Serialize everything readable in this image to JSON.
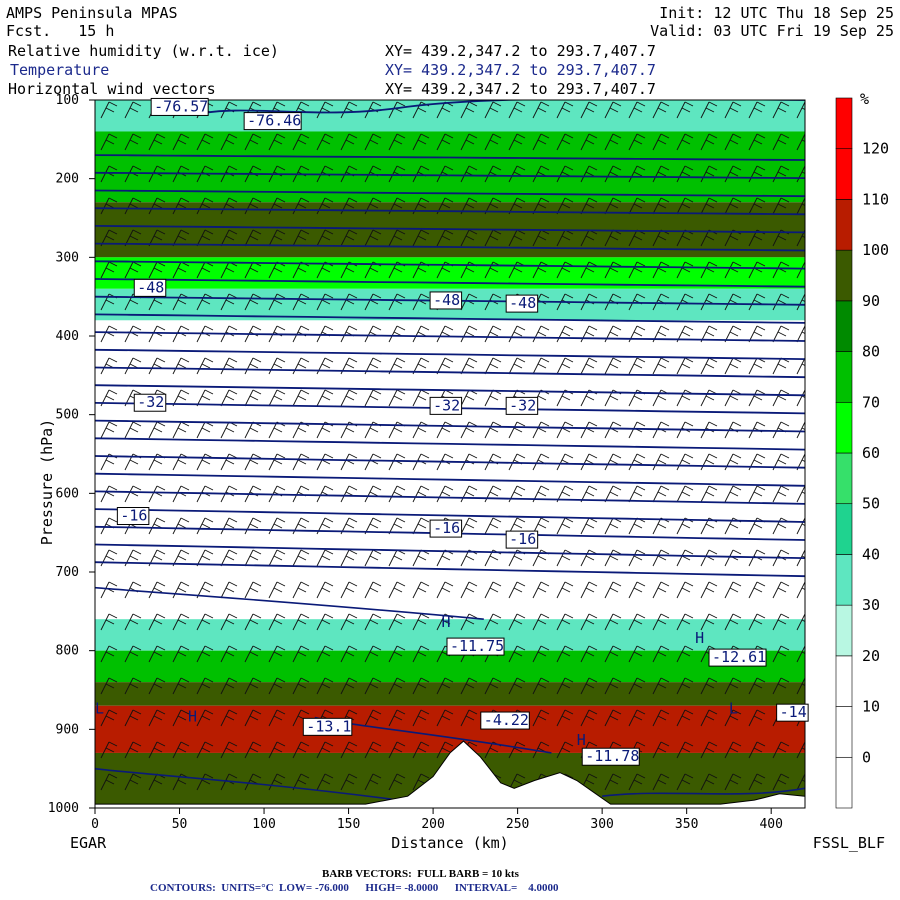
{
  "header": {
    "model": "AMPS Peninsula MPAS",
    "forecast": "Fcst.   15 h",
    "init": "Init: 12 UTC Thu 18 Sep 25",
    "valid": "Valid: 03 UTC Fri 19 Sep 25",
    "fields": [
      {
        "name": "Relative humidity (w.r.t. ice)",
        "xy": "XY= 439.2,347.2 to 293.7,407.7",
        "color": "#000000"
      },
      {
        "name": "Temperature",
        "xy": "XY= 439.2,347.2 to 293.7,407.7",
        "color": "#1c2a8c"
      },
      {
        "name": "Horizontal wind vectors",
        "xy": "XY= 439.2,347.2 to 293.7,407.7",
        "color": "#000000"
      }
    ]
  },
  "chart_data": {
    "type": "cross-section",
    "xlabel": "Distance (km)",
    "ylabel": "Pressure (hPa)",
    "xlim": [
      0,
      420
    ],
    "ylim": [
      1000,
      100
    ],
    "x_ticks": [
      0,
      50,
      100,
      150,
      200,
      250,
      300,
      350,
      400
    ],
    "y_ticks": [
      100,
      200,
      300,
      400,
      500,
      600,
      700,
      800,
      900,
      1000
    ],
    "left_end_label": "EGAR",
    "right_end_label": "FSSL_BLF",
    "colorbar": {
      "unit": "%",
      "levels": [
        0,
        10,
        20,
        30,
        40,
        50,
        60,
        70,
        80,
        90,
        100,
        110,
        120
      ],
      "colors": [
        "#ffffff",
        "#ffffff",
        "#ffffff",
        "#b8f7e2",
        "#5ee6c0",
        "#1fd38f",
        "#36e06a",
        "#00ff00",
        "#00c000",
        "#008a00",
        "#3b5a00",
        "#b81c00",
        "#ff0000"
      ]
    },
    "humidity_bands": [
      {
        "p_top": 100,
        "p_bottom": 140,
        "rh": 45
      },
      {
        "p_top": 140,
        "p_bottom": 230,
        "rh": 80
      },
      {
        "p_top": 230,
        "p_bottom": 300,
        "rh": 101
      },
      {
        "p_top": 300,
        "p_bottom": 340,
        "rh": 75
      },
      {
        "p_top": 340,
        "p_bottom": 380,
        "rh": 40
      },
      {
        "p_top": 760,
        "p_bottom": 800,
        "rh": 45
      },
      {
        "p_top": 800,
        "p_bottom": 840,
        "rh": 80
      },
      {
        "p_top": 840,
        "p_bottom": 870,
        "rh": 101
      },
      {
        "p_top": 870,
        "p_bottom": 930,
        "rh": 112
      },
      {
        "p_top": 930,
        "p_bottom": 1000,
        "rh": 101
      }
    ],
    "isotherm_labels": [
      {
        "text": "-76.57",
        "x": 35,
        "p": 112
      },
      {
        "text": "-76.46",
        "x": 90,
        "p": 130
      },
      {
        "text": "-48",
        "x": 25,
        "p": 342
      },
      {
        "text": "-48",
        "x": 200,
        "p": 358
      },
      {
        "text": "-48",
        "x": 245,
        "p": 362
      },
      {
        "text": "-32",
        "x": 25,
        "p": 488
      },
      {
        "text": "-32",
        "x": 200,
        "p": 492
      },
      {
        "text": "-32",
        "x": 245,
        "p": 492
      },
      {
        "text": "-16",
        "x": 15,
        "p": 632
      },
      {
        "text": "-16",
        "x": 200,
        "p": 648
      },
      {
        "text": "-16",
        "x": 245,
        "p": 662
      },
      {
        "text": "-11.75",
        "x": 210,
        "p": 798
      },
      {
        "text": "-12.61",
        "x": 365,
        "p": 812
      },
      {
        "text": "-13.1",
        "x": 125,
        "p": 900
      },
      {
        "text": "-4.22",
        "x": 230,
        "p": 892
      },
      {
        "text": "-11.78",
        "x": 290,
        "p": 938
      },
      {
        "text": "-14",
        "x": 405,
        "p": 882
      }
    ],
    "extrema_markers": [
      {
        "text": "H",
        "x": 205,
        "p": 770
      },
      {
        "text": "H",
        "x": 355,
        "p": 790
      },
      {
        "text": "H",
        "x": 55,
        "p": 890
      },
      {
        "text": "H",
        "x": 285,
        "p": 920
      },
      {
        "text": "L",
        "x": 375,
        "p": 880
      },
      {
        "text": "L",
        "x": 0,
        "p": 880
      }
    ]
  },
  "footer": {
    "barb_note": "BARB VECTORS:  FULL BARB = 10 kts",
    "contours_note": "CONTOURS:  UNITS=°C  LOW= -76.000      HIGH= -8.0000      INTERVAL=    4.0000"
  }
}
